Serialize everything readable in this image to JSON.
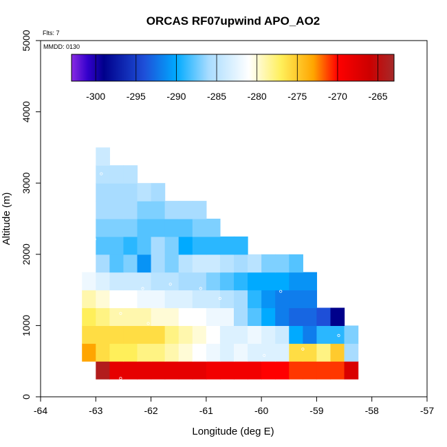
{
  "chart_data": {
    "type": "heatmap",
    "title": "ORCAS RF07upwind APO_AO2",
    "flights_label": "Flts: 7",
    "date_label": "MMDD: 0130",
    "xlabel": "Longitude (deg E)",
    "ylabel": "Altitude (m)",
    "xlim": [
      -64,
      -57
    ],
    "ylim": [
      0,
      5000
    ],
    "xticks": [
      -64,
      -63,
      -62,
      -61,
      -60,
      -59,
      -58,
      -57
    ],
    "yticks": [
      0,
      1000,
      2000,
      3000,
      4000,
      5000
    ],
    "grid": false,
    "colorbar": {
      "range": [
        -303,
        -263
      ],
      "ticks": [
        -300,
        -295,
        -290,
        -285,
        -280,
        -275,
        -270,
        -265
      ],
      "stops": [
        {
          "v": -303,
          "c": "#8a2be2"
        },
        {
          "v": -301,
          "c": "#3300cc"
        },
        {
          "v": -299,
          "c": "#00008b"
        },
        {
          "v": -294,
          "c": "#1e4fd8"
        },
        {
          "v": -290,
          "c": "#00aaff"
        },
        {
          "v": -286,
          "c": "#a8dcff"
        },
        {
          "v": -281,
          "c": "#ffffff"
        },
        {
          "v": -277,
          "c": "#ffef5a"
        },
        {
          "v": -273,
          "c": "#ffa500"
        },
        {
          "v": -270,
          "c": "#ff0000"
        },
        {
          "v": -266,
          "c": "#cc0000"
        },
        {
          "v": -263,
          "c": "#a52a2a"
        }
      ]
    },
    "cell_width_deg": 0.25,
    "cell_height_m": 250,
    "columns_start_lon": [
      -63.25,
      -63.0,
      -62.75,
      -62.5,
      -62.25,
      -62.0,
      -61.75,
      -61.5,
      -61.25,
      -61.0,
      -60.75,
      -60.5,
      -60.25,
      -60.0,
      -59.75,
      -59.5,
      -59.25,
      -59.0,
      -58.75
    ],
    "rows": [
      {
        "bottom": 250,
        "start_col": 1,
        "values": [
          -264,
          -268,
          -268,
          -268,
          -268,
          -268,
          -268,
          -268,
          -269,
          -269,
          -269,
          -269,
          -270,
          -270,
          -271,
          -271,
          -271,
          -271,
          -267
        ]
      },
      {
        "bottom": 500,
        "start_col": 0,
        "values": [
          -273,
          -276,
          -277,
          -277,
          -278,
          -278,
          -279,
          -280,
          -281,
          -282,
          -283,
          -282,
          -283,
          -283,
          -283,
          -276,
          -276,
          -278,
          -275,
          -286
        ]
      },
      {
        "bottom": 750,
        "start_col": 0,
        "values": [
          -276,
          -276,
          -276,
          -276,
          -276,
          -276,
          -278,
          -279,
          -280,
          -281,
          -283,
          -283,
          -282,
          -283,
          -284,
          -290,
          -292,
          -289,
          -289,
          -287
        ]
      },
      {
        "bottom": 1000,
        "start_col": 0,
        "values": [
          -277,
          -278,
          -279,
          -279,
          -279,
          -280,
          -280,
          -281,
          -281,
          -282,
          -282,
          -286,
          -288,
          -290,
          -292,
          -293,
          -293,
          -294,
          -299
        ]
      },
      {
        "bottom": 1250,
        "start_col": 0,
        "values": [
          -279,
          -280,
          -281,
          -281,
          -282,
          -282,
          -283,
          -283,
          -284,
          -284,
          -285,
          -286,
          -289,
          -291,
          -292,
          -292,
          -292
        ]
      },
      {
        "bottom": 1500,
        "start_col": 0,
        "values": [
          -282,
          -283,
          -284,
          -284,
          -284,
          -285,
          -285,
          -286,
          -286,
          -287,
          -288,
          -289,
          -290,
          -290,
          -290,
          -291,
          -291
        ]
      },
      {
        "bottom": 1750,
        "start_col": 1,
        "values": [
          -286,
          -288,
          -287,
          -291,
          -286,
          -287,
          -285,
          -284,
          -284,
          -285,
          -286,
          -285,
          -287,
          -287,
          -288
        ]
      },
      {
        "bottom": 2000,
        "start_col": 1,
        "values": [
          -288,
          -288,
          -289,
          -288,
          -286,
          -287,
          -290,
          -289,
          -289,
          -289,
          -289
        ]
      },
      {
        "bottom": 2250,
        "start_col": 1,
        "values": [
          -287,
          -287,
          -287,
          -288,
          -288,
          -288,
          -288,
          -287,
          -287
        ]
      },
      {
        "bottom": 2500,
        "start_col": 1,
        "values": [
          -286,
          -286,
          -286,
          -287,
          -287,
          -286,
          -286,
          -286
        ]
      },
      {
        "bottom": 2750,
        "start_col": 1,
        "values": [
          -286,
          -286,
          -286,
          -285,
          -286
        ]
      },
      {
        "bottom": 3000,
        "start_col": 1,
        "values": [
          -285,
          -285,
          -285
        ]
      },
      {
        "bottom": 3250,
        "start_col": 1,
        "values": [
          -284
        ]
      }
    ],
    "sample_points": [
      [
        -62.95,
        160
      ],
      [
        -62.93,
        160
      ],
      [
        -62.75,
        160
      ],
      [
        -62.55,
        260
      ],
      [
        -62.25,
        160
      ],
      [
        -61.75,
        180
      ],
      [
        -61.55,
        170
      ],
      [
        -61.35,
        165
      ],
      [
        -60.35,
        160
      ],
      [
        -60.15,
        160
      ],
      [
        -59.85,
        165
      ],
      [
        -59.4,
        165
      ],
      [
        -59.15,
        160
      ],
      [
        -59.0,
        160
      ],
      [
        -58.85,
        165
      ],
      [
        -58.7,
        160
      ],
      [
        -58.6,
        860
      ],
      [
        -59.25,
        670
      ],
      [
        -59.65,
        1480
      ],
      [
        -59.95,
        580
      ],
      [
        -60.75,
        1380
      ],
      [
        -61.1,
        1520
      ],
      [
        -61.65,
        1580
      ],
      [
        -62.15,
        1520
      ],
      [
        -62.55,
        1170
      ],
      [
        -62.05,
        1030
      ],
      [
        -63.05,
        420
      ],
      [
        -63.02,
        2210
      ],
      [
        -62.9,
        3130
      ],
      [
        -62.7,
        1350
      ]
    ]
  }
}
